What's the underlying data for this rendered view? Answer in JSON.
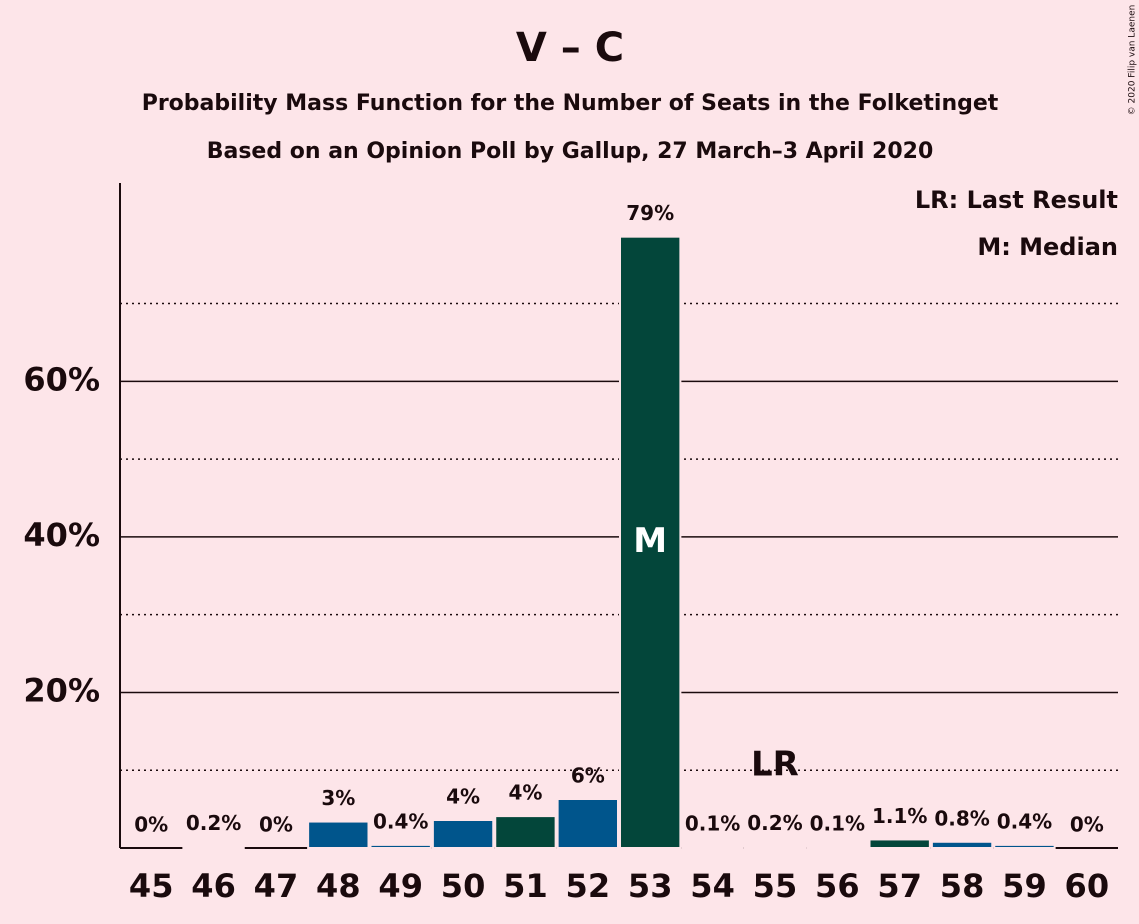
{
  "chart_data": {
    "type": "bar",
    "title": "V – C",
    "subtitle": "Probability Mass Function for the Number of Seats in the Folketinget",
    "subtitle2": "Based on an Opinion Poll by Gallup, 27 March–3 April 2020",
    "copyright": "© 2020 Filip van Laenen",
    "categories": [
      "45",
      "46",
      "47",
      "48",
      "49",
      "50",
      "51",
      "52",
      "53",
      "54",
      "55",
      "56",
      "57",
      "58",
      "59",
      "60"
    ],
    "values": [
      0,
      0.2,
      0,
      3.4,
      0.4,
      3.6,
      4.1,
      6.3,
      78.6,
      0.1,
      0.2,
      0.1,
      1.1,
      0.8,
      0.4,
      0
    ],
    "value_labels": [
      "0%",
      "0.2%",
      "0%",
      "3%",
      "0.4%",
      "4%",
      "4%",
      "6%",
      "79%",
      "0.1%",
      "0.2%",
      "0.1%",
      "1.1%",
      "0.8%",
      "0.4%",
      "0%"
    ],
    "colors": [
      "#00558c",
      "#00558c",
      "#00558c",
      "#00558c",
      "#00558c",
      "#00558c",
      "#03463a",
      "#00558c",
      "#03463a",
      "#03463a",
      "#03463a",
      "#03463a",
      "#03463a",
      "#00558c",
      "#00558c",
      "#00558c"
    ],
    "ylim": [
      0,
      85.5
    ],
    "yticks": [
      {
        "value": 20,
        "label": "20%"
      },
      {
        "value": 40,
        "label": "40%"
      },
      {
        "value": 60,
        "label": "60%"
      }
    ],
    "yticks_minor": [
      10,
      30,
      50,
      70
    ],
    "grid": true,
    "median_label": "M",
    "median_category": "53",
    "last_result_label": "LR",
    "last_result_category": "55",
    "legend": [
      "LR: Last Result",
      "M: Median"
    ],
    "legend_position": "upper right"
  }
}
